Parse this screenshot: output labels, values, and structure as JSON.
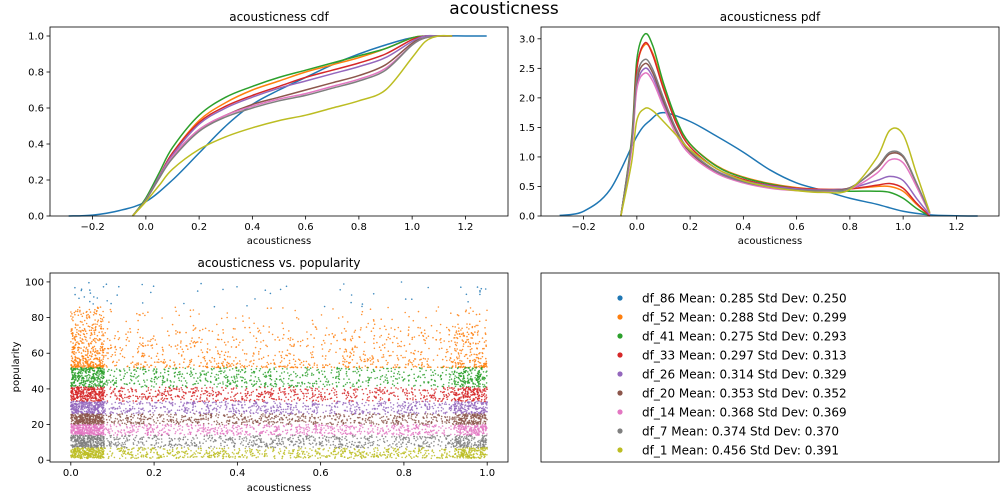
{
  "figure": {
    "title": "acousticness"
  },
  "colors": [
    "#1f77b4",
    "#ff7f0e",
    "#2ca02c",
    "#d62728",
    "#9467bd",
    "#8c564b",
    "#e377c2",
    "#7f7f7f",
    "#bcbd22"
  ],
  "chart_data": [
    {
      "id": "cdf",
      "type": "line",
      "title": "acousticness cdf",
      "xlabel": "acousticness",
      "ylabel": "",
      "xlim": [
        -0.36,
        1.36
      ],
      "ylim": [
        0,
        1.05
      ],
      "xticks": [
        -0.2,
        0.0,
        0.2,
        0.4,
        0.6,
        0.8,
        1.0,
        1.2
      ],
      "xtick_labels": [
        "−0.2",
        "0.0",
        "0.2",
        "0.4",
        "0.6",
        "0.8",
        "1.0",
        "1.2"
      ],
      "yticks": [
        0,
        0.2,
        0.4,
        0.6,
        0.8,
        1.0
      ],
      "ytick_labels": [
        "0.0",
        "0.2",
        "0.4",
        "0.6",
        "0.8",
        "1.0"
      ],
      "series": [
        {
          "x": [
            -0.29,
            -0.2,
            -0.1,
            0,
            0.1,
            0.2,
            0.3,
            0.4,
            0.5,
            0.6,
            0.7,
            0.8,
            0.9,
            1.0,
            1.1,
            1.2,
            1.28
          ],
          "y": [
            0,
            0.005,
            0.03,
            0.08,
            0.2,
            0.35,
            0.5,
            0.62,
            0.7,
            0.77,
            0.84,
            0.9,
            0.95,
            0.99,
            1,
            1,
            1
          ]
        },
        {
          "x": [
            -0.05,
            0,
            0.05,
            0.1,
            0.2,
            0.3,
            0.4,
            0.5,
            0.6,
            0.7,
            0.8,
            0.9,
            1.0,
            1.05,
            1.1,
            1.15
          ],
          "y": [
            0,
            0.09,
            0.22,
            0.35,
            0.53,
            0.63,
            0.7,
            0.75,
            0.8,
            0.84,
            0.88,
            0.93,
            0.99,
            1,
            1,
            1
          ]
        },
        {
          "x": [
            -0.05,
            0,
            0.05,
            0.1,
            0.2,
            0.3,
            0.4,
            0.5,
            0.6,
            0.7,
            0.8,
            0.9,
            1.0,
            1.05,
            1.1,
            1.15
          ],
          "y": [
            0,
            0.1,
            0.24,
            0.38,
            0.56,
            0.66,
            0.72,
            0.77,
            0.81,
            0.85,
            0.89,
            0.93,
            0.99,
            1,
            1,
            1
          ]
        },
        {
          "x": [
            -0.05,
            0,
            0.05,
            0.1,
            0.2,
            0.3,
            0.4,
            0.5,
            0.6,
            0.7,
            0.8,
            0.9,
            1.0,
            1.05,
            1.1,
            1.15
          ],
          "y": [
            0,
            0.09,
            0.22,
            0.35,
            0.52,
            0.61,
            0.67,
            0.72,
            0.77,
            0.81,
            0.85,
            0.9,
            0.98,
            1,
            1,
            1
          ]
        },
        {
          "x": [
            -0.05,
            0,
            0.05,
            0.1,
            0.2,
            0.3,
            0.4,
            0.5,
            0.6,
            0.7,
            0.8,
            0.9,
            1.0,
            1.05,
            1.1,
            1.15
          ],
          "y": [
            0,
            0.09,
            0.22,
            0.34,
            0.51,
            0.6,
            0.66,
            0.71,
            0.75,
            0.79,
            0.83,
            0.88,
            0.97,
            1,
            1,
            1
          ]
        },
        {
          "x": [
            -0.05,
            0,
            0.05,
            0.1,
            0.2,
            0.3,
            0.4,
            0.5,
            0.6,
            0.7,
            0.8,
            0.9,
            1.0,
            1.05,
            1.1,
            1.15
          ],
          "y": [
            0,
            0.09,
            0.21,
            0.33,
            0.48,
            0.56,
            0.62,
            0.66,
            0.7,
            0.74,
            0.78,
            0.84,
            0.96,
            0.99,
            1,
            1
          ]
        },
        {
          "x": [
            -0.05,
            0,
            0.05,
            0.1,
            0.2,
            0.3,
            0.4,
            0.5,
            0.6,
            0.7,
            0.8,
            0.9,
            1.0,
            1.05,
            1.1,
            1.15
          ],
          "y": [
            0,
            0.09,
            0.21,
            0.33,
            0.48,
            0.56,
            0.61,
            0.65,
            0.68,
            0.72,
            0.76,
            0.82,
            0.95,
            0.99,
            1,
            1
          ]
        },
        {
          "x": [
            -0.05,
            0,
            0.05,
            0.1,
            0.2,
            0.3,
            0.4,
            0.5,
            0.6,
            0.7,
            0.8,
            0.9,
            1.0,
            1.05,
            1.1,
            1.15
          ],
          "y": [
            0,
            0.09,
            0.21,
            0.32,
            0.47,
            0.55,
            0.6,
            0.64,
            0.67,
            0.71,
            0.75,
            0.81,
            0.95,
            0.99,
            1,
            1
          ]
        },
        {
          "x": [
            -0.05,
            0,
            0.05,
            0.1,
            0.2,
            0.3,
            0.4,
            0.5,
            0.6,
            0.7,
            0.8,
            0.9,
            1.0,
            1.05,
            1.1,
            1.15
          ],
          "y": [
            0,
            0.08,
            0.17,
            0.26,
            0.37,
            0.44,
            0.49,
            0.53,
            0.56,
            0.6,
            0.64,
            0.7,
            0.88,
            0.97,
            1,
            1
          ]
        }
      ]
    },
    {
      "id": "pdf",
      "type": "line",
      "title": "acousticness pdf",
      "xlabel": "acousticness",
      "ylabel": "",
      "xlim": [
        -0.36,
        1.36
      ],
      "ylim": [
        0,
        3.2
      ],
      "xticks": [
        -0.2,
        0.0,
        0.2,
        0.4,
        0.6,
        0.8,
        1.0,
        1.2
      ],
      "xtick_labels": [
        "−0.2",
        "0.0",
        "0.2",
        "0.4",
        "0.6",
        "0.8",
        "1.0",
        "1.2"
      ],
      "yticks": [
        0,
        0.5,
        1.0,
        1.5,
        2.0,
        2.5,
        3.0
      ],
      "ytick_labels": [
        "0.0",
        "0.5",
        "1.0",
        "1.5",
        "2.0",
        "2.5",
        "3.0"
      ],
      "series": [
        {
          "x": [
            -0.29,
            -0.2,
            -0.1,
            0,
            0.05,
            0.1,
            0.2,
            0.3,
            0.4,
            0.5,
            0.6,
            0.7,
            0.8,
            0.9,
            1.0,
            1.1,
            1.2,
            1.28
          ],
          "y": [
            0.01,
            0.08,
            0.45,
            1.35,
            1.62,
            1.75,
            1.6,
            1.35,
            1.08,
            0.78,
            0.56,
            0.43,
            0.3,
            0.2,
            0.08,
            0.02,
            0.005,
            0
          ]
        },
        {
          "x": [
            -0.06,
            -0.02,
            0,
            0.03,
            0.06,
            0.1,
            0.15,
            0.2,
            0.3,
            0.4,
            0.5,
            0.6,
            0.7,
            0.8,
            0.9,
            0.95,
            1.0,
            1.05,
            1.1
          ],
          "y": [
            0,
            1.2,
            2.5,
            2.9,
            2.75,
            2.2,
            1.6,
            1.22,
            0.85,
            0.66,
            0.55,
            0.48,
            0.45,
            0.46,
            0.5,
            0.5,
            0.42,
            0.2,
            0
          ]
        },
        {
          "x": [
            -0.06,
            -0.02,
            0,
            0.03,
            0.06,
            0.1,
            0.15,
            0.2,
            0.3,
            0.4,
            0.5,
            0.6,
            0.7,
            0.8,
            0.9,
            0.95,
            1.0,
            1.05,
            1.1
          ],
          "y": [
            0,
            1.3,
            2.65,
            3.08,
            2.88,
            2.25,
            1.62,
            1.22,
            0.84,
            0.65,
            0.54,
            0.47,
            0.43,
            0.42,
            0.42,
            0.4,
            0.3,
            0.13,
            0
          ]
        },
        {
          "x": [
            -0.06,
            -0.02,
            0,
            0.03,
            0.06,
            0.1,
            0.15,
            0.2,
            0.3,
            0.4,
            0.5,
            0.6,
            0.7,
            0.8,
            0.9,
            0.95,
            1.0,
            1.05,
            1.1
          ],
          "y": [
            0,
            1.25,
            2.5,
            2.93,
            2.72,
            2.15,
            1.55,
            1.17,
            0.8,
            0.62,
            0.52,
            0.47,
            0.45,
            0.46,
            0.52,
            0.55,
            0.47,
            0.22,
            0
          ]
        },
        {
          "x": [
            -0.06,
            -0.02,
            0,
            0.03,
            0.06,
            0.1,
            0.15,
            0.2,
            0.3,
            0.4,
            0.5,
            0.6,
            0.7,
            0.8,
            0.9,
            0.95,
            1.0,
            1.05,
            1.1
          ],
          "y": [
            0,
            1.15,
            2.2,
            2.5,
            2.35,
            1.9,
            1.42,
            1.1,
            0.76,
            0.6,
            0.51,
            0.46,
            0.44,
            0.47,
            0.6,
            0.67,
            0.6,
            0.3,
            0.02
          ]
        },
        {
          "x": [
            -0.06,
            -0.02,
            0,
            0.03,
            0.06,
            0.1,
            0.15,
            0.2,
            0.3,
            0.4,
            0.5,
            0.6,
            0.7,
            0.8,
            0.9,
            0.95,
            1.0,
            1.05,
            1.1
          ],
          "y": [
            0,
            1.2,
            2.28,
            2.58,
            2.42,
            1.95,
            1.42,
            1.08,
            0.73,
            0.57,
            0.48,
            0.44,
            0.43,
            0.48,
            0.8,
            1.05,
            1.0,
            0.55,
            0.04
          ]
        },
        {
          "x": [
            -0.06,
            -0.02,
            0,
            0.03,
            0.06,
            0.1,
            0.15,
            0.2,
            0.3,
            0.4,
            0.5,
            0.6,
            0.7,
            0.8,
            0.9,
            0.95,
            1.0,
            1.05,
            1.1
          ],
          "y": [
            0,
            1.12,
            2.15,
            2.42,
            2.28,
            1.85,
            1.36,
            1.04,
            0.72,
            0.56,
            0.47,
            0.43,
            0.42,
            0.46,
            0.72,
            0.95,
            0.9,
            0.5,
            0.03
          ]
        },
        {
          "x": [
            -0.06,
            -0.02,
            0,
            0.03,
            0.06,
            0.1,
            0.15,
            0.2,
            0.3,
            0.4,
            0.5,
            0.6,
            0.7,
            0.8,
            0.9,
            0.95,
            1.0,
            1.05,
            1.1
          ],
          "y": [
            0,
            1.22,
            2.35,
            2.65,
            2.48,
            2.0,
            1.45,
            1.1,
            0.75,
            0.58,
            0.49,
            0.44,
            0.43,
            0.47,
            0.82,
            1.08,
            1.02,
            0.56,
            0.05
          ]
        },
        {
          "x": [
            -0.06,
            -0.02,
            0,
            0.03,
            0.06,
            0.1,
            0.15,
            0.2,
            0.3,
            0.4,
            0.5,
            0.6,
            0.7,
            0.8,
            0.9,
            0.95,
            1.0,
            1.05,
            1.1
          ],
          "y": [
            0,
            0.9,
            1.62,
            1.82,
            1.78,
            1.6,
            1.36,
            1.12,
            0.8,
            0.6,
            0.49,
            0.43,
            0.4,
            0.45,
            0.98,
            1.45,
            1.38,
            0.72,
            0.06
          ]
        }
      ]
    },
    {
      "id": "scatter",
      "type": "scatter",
      "title": "acousticness vs. popularity",
      "xlabel": "acousticness",
      "ylabel": "popularity",
      "xlim": [
        -0.05,
        1.05
      ],
      "ylim": [
        -1,
        105
      ],
      "xticks": [
        0.0,
        0.2,
        0.4,
        0.6,
        0.8,
        1.0
      ],
      "xtick_labels": [
        "0.0",
        "0.2",
        "0.4",
        "0.6",
        "0.8",
        "1.0"
      ],
      "yticks": [
        0,
        20,
        40,
        60,
        80,
        100
      ],
      "ytick_labels": [
        "0",
        "20",
        "40",
        "60",
        "80",
        "100"
      ],
      "series_popularity_ranges": [
        [
          86,
          100
        ],
        [
          52,
          86
        ],
        [
          41,
          52
        ],
        [
          33,
          41
        ],
        [
          26,
          33
        ],
        [
          20,
          26
        ],
        [
          14,
          20
        ],
        [
          7,
          14
        ],
        [
          1,
          7
        ]
      ]
    }
  ],
  "legend": {
    "items": [
      {
        "label": "df_86  Mean: 0.285  Std Dev: 0.250"
      },
      {
        "label": "df_52  Mean: 0.288  Std Dev: 0.299"
      },
      {
        "label": "df_41  Mean: 0.275  Std Dev: 0.293"
      },
      {
        "label": "df_33  Mean: 0.297  Std Dev: 0.313"
      },
      {
        "label": "df_26  Mean: 0.314  Std Dev: 0.329"
      },
      {
        "label": "df_20  Mean: 0.353  Std Dev: 0.352"
      },
      {
        "label": "df_14  Mean: 0.368  Std Dev: 0.369"
      },
      {
        "label": "df_7  Mean: 0.374  Std Dev: 0.370"
      },
      {
        "label": "df_1  Mean: 0.456  Std Dev: 0.391"
      }
    ]
  }
}
